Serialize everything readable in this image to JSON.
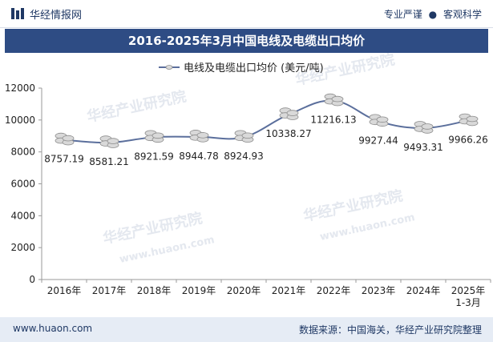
{
  "header": {
    "brand": "华经情报网",
    "tag1": "专业严谨",
    "tag2": "客观科学"
  },
  "title": "2016-2025年3月中国电线及电缆出口均价",
  "footer": {
    "website": "www.huaon.com",
    "source": "数据来源：中国海关，华经产业研究院整理"
  },
  "watermark": {
    "cn": "华经产业研究院",
    "en": "www.huaon.com"
  },
  "colors": {
    "line": "#5b6f9c",
    "marker": "#d9d9d9",
    "title_bg": "#2e4c84",
    "footer_bg": "#e6ecf5"
  },
  "chart_data": {
    "type": "line",
    "title": "2016-2025年3月中国电线及电缆出口均价",
    "categories": [
      "2016年",
      "2017年",
      "2018年",
      "2019年",
      "2020年",
      "2021年",
      "2022年",
      "2023年",
      "2024年",
      "2025年"
    ],
    "category_sublabels": [
      "",
      "",
      "",
      "",
      "",
      "",
      "",
      "",
      "",
      "1-3月"
    ],
    "series": [
      {
        "name": "电线及电缆出口均价 (美元/吨)",
        "values": [
          8757.19,
          8581.21,
          8921.59,
          8944.78,
          8924.93,
          10338.27,
          11216.13,
          9927.44,
          9493.31,
          9966.26
        ]
      }
    ],
    "value_labels": [
      "8757.19",
      "8581.21",
      "8921.59",
      "8944.78",
      "8924.93",
      "10338.27",
      "11216.13",
      "9927.44",
      "9493.31",
      "9966.26"
    ],
    "ylim": [
      0,
      12000
    ],
    "yticks": [
      0,
      2000,
      4000,
      6000,
      8000,
      10000,
      12000
    ],
    "ytick_labels": [
      "0",
      "2000",
      "4000",
      "6000",
      "8000",
      "10000",
      "12000"
    ],
    "legend_position": "top-center",
    "grid": false
  }
}
